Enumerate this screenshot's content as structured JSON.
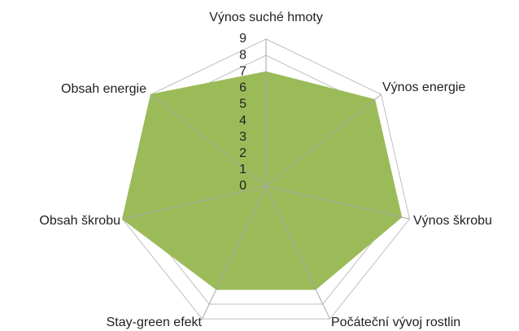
{
  "chart_data": {
    "type": "radar",
    "categories": [
      "Výnos suché hmoty",
      "Výnos energie",
      "Výnos škrobu",
      "Počáteční vývoj rostlin",
      "Stay-green efekt",
      "Obsah škrobu",
      "Obsah energie"
    ],
    "series": [
      {
        "color": "#9bbb59",
        "values": [
          7,
          8.5,
          8.5,
          7,
          7,
          9,
          9
        ]
      }
    ],
    "ylim": [
      0,
      9
    ],
    "yticks": [
      0,
      1,
      2,
      3,
      4,
      5,
      6,
      7,
      8,
      9
    ],
    "grid": true
  }
}
